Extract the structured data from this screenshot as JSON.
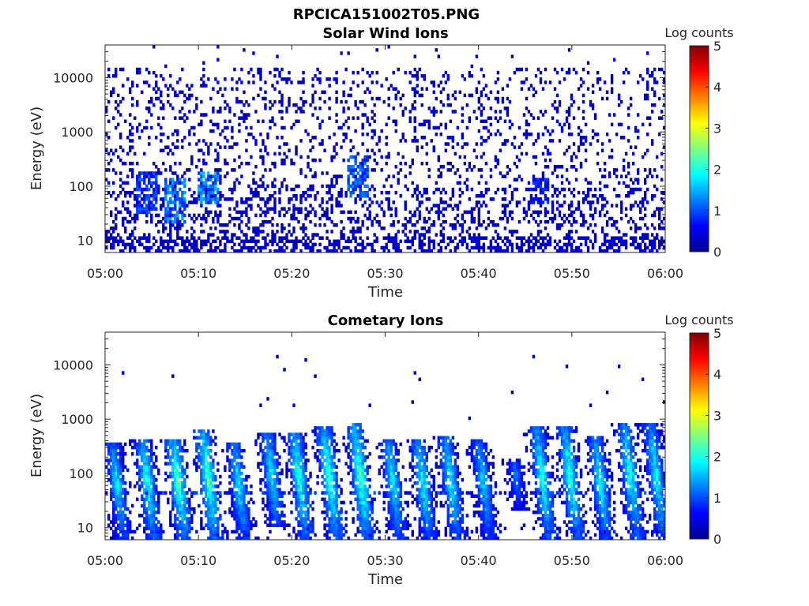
{
  "figure": {
    "title": "RPCICA151002T05.PNG"
  },
  "colormap": {
    "name": "jet",
    "stops": [
      "#00008f",
      "#0000ff",
      "#00ffff",
      "#ffff00",
      "#ff0000",
      "#800000"
    ]
  },
  "chart_data": [
    {
      "type": "heatmap",
      "title": "Solar Wind Ions",
      "xlabel": "Time",
      "ylabel": "Energy (eV)",
      "x_ticks": [
        "05:00",
        "05:10",
        "05:20",
        "05:30",
        "05:40",
        "05:50",
        "06:00"
      ],
      "x_range_minutes": [
        0,
        60
      ],
      "y_scale": "log",
      "y_ticks": [
        10,
        100,
        1000,
        10000
      ],
      "y_tick_labels": [
        "10",
        "100",
        "1000",
        "10000"
      ],
      "y_range": [
        6,
        40000
      ],
      "colorbar": {
        "label": "Log counts",
        "range": [
          0,
          5
        ],
        "ticks": [
          "0",
          "1",
          "2",
          "3",
          "4",
          "5"
        ]
      },
      "features": {
        "background": "sparse low counts (log ~0-0.5) spanning 10 eV to ~15000 eV",
        "enhancements": [
          {
            "time_min": 4.5,
            "energy_range": [
              30,
              200
            ],
            "log_counts": 1.2
          },
          {
            "time_min": 7.5,
            "energy_range": [
              20,
              150
            ],
            "log_counts": 1.5
          },
          {
            "time_min": 11,
            "energy_range": [
              50,
              200
            ],
            "log_counts": 1.6
          },
          {
            "time_min": 27,
            "energy_range": [
              60,
              350
            ],
            "log_counts": 1.3
          },
          {
            "time_min": 46.5,
            "energy_range": [
              50,
              150
            ],
            "log_counts": 1.0
          }
        ]
      }
    },
    {
      "type": "heatmap",
      "title": "Cometary Ions",
      "xlabel": "Time",
      "ylabel": "Energy (eV)",
      "x_ticks": [
        "05:00",
        "05:10",
        "05:20",
        "05:30",
        "05:40",
        "05:50",
        "06:00"
      ],
      "x_range_minutes": [
        0,
        60
      ],
      "y_scale": "log",
      "y_ticks": [
        10,
        100,
        1000,
        10000
      ],
      "y_tick_labels": [
        "10",
        "100",
        "1000",
        "10000"
      ],
      "y_range": [
        6,
        40000
      ],
      "colorbar": {
        "label": "Log counts",
        "range": [
          0,
          5
        ],
        "ticks": [
          "0",
          "1",
          "2",
          "3",
          "4",
          "5"
        ]
      },
      "features": {
        "bursts": [
          {
            "time_min": 1.3,
            "energy_range": [
              6,
              350
            ],
            "peak_log_counts": 1.9
          },
          {
            "time_min": 4.5,
            "energy_range": [
              6,
              450
            ],
            "peak_log_counts": 2.2
          },
          {
            "time_min": 7.8,
            "energy_range": [
              6,
              450
            ],
            "peak_log_counts": 2.5
          },
          {
            "time_min": 11,
            "energy_range": [
              6,
              650
            ],
            "peak_log_counts": 2.5
          },
          {
            "time_min": 14.3,
            "energy_range": [
              6,
              350
            ],
            "peak_log_counts": 2.0
          },
          {
            "time_min": 17.8,
            "energy_range": [
              10,
              550
            ],
            "peak_log_counts": 2.0
          },
          {
            "time_min": 20.8,
            "energy_range": [
              6,
              600
            ],
            "peak_log_counts": 2.3
          },
          {
            "time_min": 24,
            "energy_range": [
              6,
              700
            ],
            "peak_log_counts": 2.4
          },
          {
            "time_min": 27.3,
            "energy_range": [
              6,
              800
            ],
            "peak_log_counts": 2.5
          },
          {
            "time_min": 30.8,
            "energy_range": [
              6,
              450
            ],
            "peak_log_counts": 2.0
          },
          {
            "time_min": 34,
            "energy_range": [
              6,
              450
            ],
            "peak_log_counts": 2.1
          },
          {
            "time_min": 37,
            "energy_range": [
              6,
              500
            ],
            "peak_log_counts": 2.1
          },
          {
            "time_min": 40.5,
            "energy_range": [
              6,
              400
            ],
            "peak_log_counts": 1.8
          },
          {
            "time_min": 44,
            "energy_range": [
              20,
              200
            ],
            "peak_log_counts": 1.3
          },
          {
            "time_min": 46.8,
            "energy_range": [
              6,
              700
            ],
            "peak_log_counts": 2.2
          },
          {
            "time_min": 49.8,
            "energy_range": [
              6,
              700
            ],
            "peak_log_counts": 2.3
          },
          {
            "time_min": 53,
            "energy_range": [
              6,
              500
            ],
            "peak_log_counts": 2.1
          },
          {
            "time_min": 56.2,
            "energy_range": [
              6,
              900
            ],
            "peak_log_counts": 2.2
          },
          {
            "time_min": 59,
            "energy_range": [
              6,
              800
            ],
            "peak_log_counts": 2.1
          }
        ],
        "band_energy_eV": 42,
        "sparse_high_energy": "scattered single pixels between 1000 and 15000 eV"
      }
    }
  ]
}
